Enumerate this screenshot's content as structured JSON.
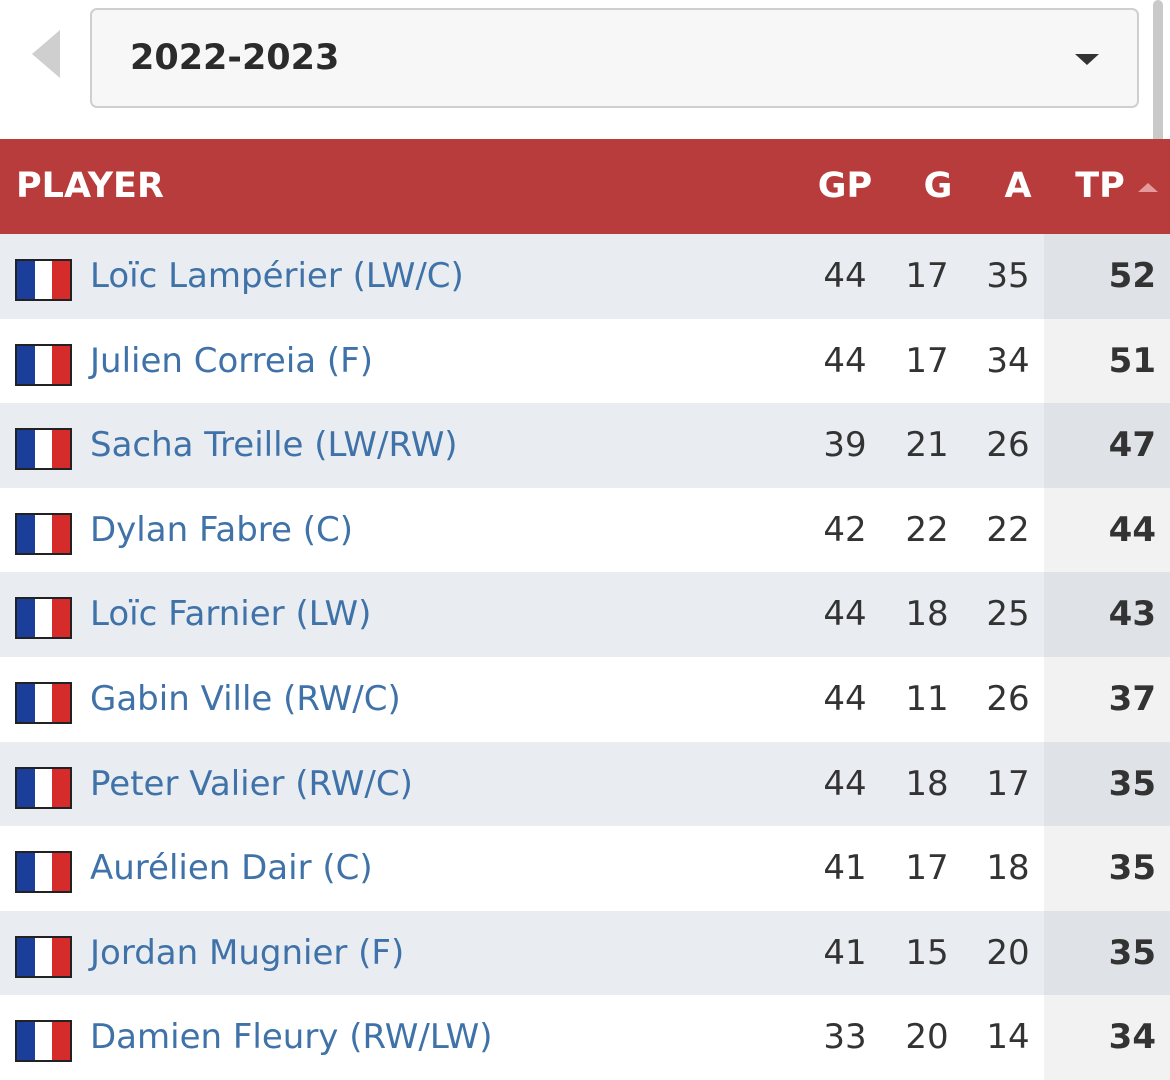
{
  "season": "2022-2023",
  "table": {
    "columns": [
      "PLAYER",
      "GP",
      "G",
      "A",
      "TP"
    ],
    "rows": [
      {
        "player": "Loïc Lampérier (LW/C)",
        "gp": 44,
        "g": 17,
        "a": 35,
        "tp": 52
      },
      {
        "player": "Julien Correia (F)",
        "gp": 44,
        "g": 17,
        "a": 34,
        "tp": 51
      },
      {
        "player": "Sacha Treille (LW/RW)",
        "gp": 39,
        "g": 21,
        "a": 26,
        "tp": 47
      },
      {
        "player": "Dylan Fabre (C)",
        "gp": 42,
        "g": 22,
        "a": 22,
        "tp": 44
      },
      {
        "player": "Loïc Farnier (LW)",
        "gp": 44,
        "g": 18,
        "a": 25,
        "tp": 43
      },
      {
        "player": "Gabin Ville (RW/C)",
        "gp": 44,
        "g": 11,
        "a": 26,
        "tp": 37
      },
      {
        "player": "Peter Valier (RW/C)",
        "gp": 44,
        "g": 18,
        "a": 17,
        "tp": 35
      },
      {
        "player": "Aurélien Dair (C)",
        "gp": 41,
        "g": 17,
        "a": 18,
        "tp": 35
      },
      {
        "player": "Jordan Mugnier (F)",
        "gp": 41,
        "g": 15,
        "a": 20,
        "tp": 35
      },
      {
        "player": "Damien Fleury (RW/LW)",
        "gp": 33,
        "g": 20,
        "a": 14,
        "tp": 34
      }
    ]
  }
}
